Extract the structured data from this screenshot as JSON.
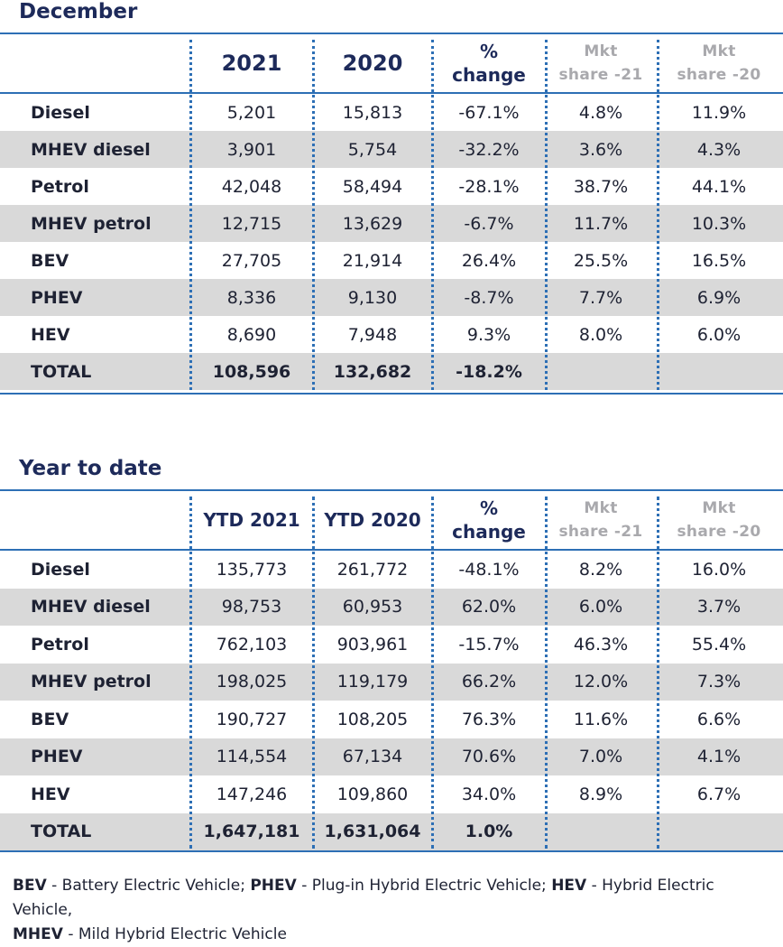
{
  "sections": [
    {
      "title": "December",
      "headers": {
        "col1": "2021",
        "col2": "2020",
        "col3_line1": "%",
        "col3_line2": "change",
        "col4_line1": "Mkt",
        "col4_line2": "share -21",
        "col5_line1": "Mkt",
        "col5_line2": "share -20"
      },
      "rows": [
        {
          "label": "Diesel",
          "v1": "5,201",
          "v2": "15,813",
          "pct": "-67.1%",
          "share21": "4.8%",
          "share20": "11.9%"
        },
        {
          "label": "MHEV diesel",
          "v1": "3,901",
          "v2": "5,754",
          "pct": "-32.2%",
          "share21": "3.6%",
          "share20": "4.3%"
        },
        {
          "label": "Petrol",
          "v1": "42,048",
          "v2": "58,494",
          "pct": "-28.1%",
          "share21": "38.7%",
          "share20": "44.1%"
        },
        {
          "label": "MHEV petrol",
          "v1": "12,715",
          "v2": "13,629",
          "pct": "-6.7%",
          "share21": "11.7%",
          "share20": "10.3%"
        },
        {
          "label": "BEV",
          "v1": "27,705",
          "v2": "21,914",
          "pct": "26.4%",
          "share21": "25.5%",
          "share20": "16.5%"
        },
        {
          "label": "PHEV",
          "v1": "8,336",
          "v2": "9,130",
          "pct": "-8.7%",
          "share21": "7.7%",
          "share20": "6.9%"
        },
        {
          "label": "HEV",
          "v1": "8,690",
          "v2": "7,948",
          "pct": "9.3%",
          "share21": "8.0%",
          "share20": "6.0%"
        }
      ],
      "total": {
        "label": "TOTAL",
        "v1": "108,596",
        "v2": "132,682",
        "pct": "-18.2%",
        "share21": "",
        "share20": ""
      }
    },
    {
      "title": "Year to date",
      "headers": {
        "col1": "YTD 2021",
        "col2": "YTD 2020",
        "col3_line1": "%",
        "col3_line2": "change",
        "col4_line1": "Mkt",
        "col4_line2": "share -21",
        "col5_line1": "Mkt",
        "col5_line2": "share -20"
      },
      "rows": [
        {
          "label": "Diesel",
          "v1": "135,773",
          "v2": "261,772",
          "pct": "-48.1%",
          "share21": "8.2%",
          "share20": "16.0%"
        },
        {
          "label": "MHEV diesel",
          "v1": "98,753",
          "v2": "60,953",
          "pct": "62.0%",
          "share21": "6.0%",
          "share20": "3.7%"
        },
        {
          "label": "Petrol",
          "v1": "762,103",
          "v2": "903,961",
          "pct": "-15.7%",
          "share21": "46.3%",
          "share20": "55.4%"
        },
        {
          "label": "MHEV petrol",
          "v1": "198,025",
          "v2": "119,179",
          "pct": "66.2%",
          "share21": "12.0%",
          "share20": "7.3%"
        },
        {
          "label": "BEV",
          "v1": "190,727",
          "v2": "108,205",
          "pct": "76.3%",
          "share21": "11.6%",
          "share20": "6.6%"
        },
        {
          "label": "PHEV",
          "v1": "114,554",
          "v2": "67,134",
          "pct": "70.6%",
          "share21": "7.0%",
          "share20": "4.1%"
        },
        {
          "label": "HEV",
          "v1": "147,246",
          "v2": "109,860",
          "pct": "34.0%",
          "share21": "8.9%",
          "share20": "6.7%"
        }
      ],
      "total": {
        "label": "TOTAL",
        "v1": "1,647,181",
        "v2": "1,631,064",
        "pct": "1.0%",
        "share21": "",
        "share20": ""
      }
    }
  ],
  "legend": {
    "items": [
      {
        "abbr": "BEV",
        "text": " - Battery Electric Vehicle; "
      },
      {
        "abbr": "PHEV",
        "text": " - Plug-in Hybrid Electric Vehicle; "
      },
      {
        "abbr": "HEV",
        "text": " - Hybrid Electric Vehicle, "
      },
      {
        "abbr": "MHEV",
        "text": " - Mild Hybrid Electric Vehicle"
      }
    ]
  },
  "colors": {
    "title": "#1d2a5a",
    "rule": "#2d6fb5",
    "shade": "#d9d9d9",
    "muted_header": "#a9a9ad"
  }
}
